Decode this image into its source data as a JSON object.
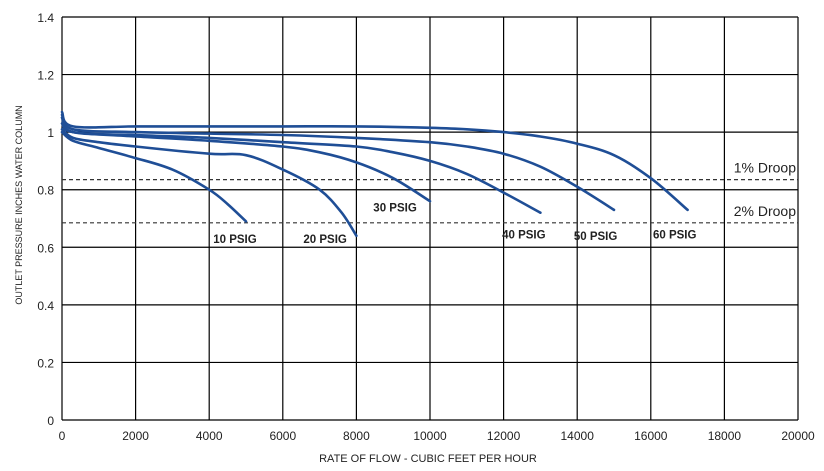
{
  "chart_data": {
    "type": "line",
    "xlabel": "RATE OF FLOW - CUBIC FEET PER HOUR",
    "ylabel": "OUTLET PRESSURE INCHES WATER COLUMN",
    "xlim": [
      0,
      20000
    ],
    "ylim": [
      0,
      1.4
    ],
    "x_ticks": [
      0,
      2000,
      4000,
      6000,
      8000,
      10000,
      12000,
      14000,
      16000,
      18000,
      20000
    ],
    "y_ticks": [
      0,
      0.2,
      0.4,
      0.6,
      0.8,
      1,
      1.2,
      1.4
    ],
    "grid": true,
    "series": [
      {
        "name": "10 PSIG",
        "x": [
          0,
          300,
          1000,
          2000,
          3000,
          4000,
          4500,
          5000
        ],
        "y": [
          1.0,
          0.97,
          0.945,
          0.91,
          0.87,
          0.8,
          0.75,
          0.69
        ]
      },
      {
        "name": "20 PSIG",
        "x": [
          0,
          300,
          1000,
          2000,
          4000,
          5000,
          6000,
          7000,
          7600,
          8000
        ],
        "y": [
          1.01,
          0.98,
          0.965,
          0.95,
          0.925,
          0.92,
          0.87,
          0.8,
          0.72,
          0.64
        ]
      },
      {
        "name": "30 PSIG",
        "x": [
          0,
          300,
          2000,
          4000,
          6000,
          7000,
          8000,
          9000,
          10000
        ],
        "y": [
          1.03,
          1.0,
          0.985,
          0.97,
          0.95,
          0.93,
          0.895,
          0.84,
          0.76
        ]
      },
      {
        "name": "40 PSIG",
        "x": [
          0,
          300,
          2000,
          4000,
          6000,
          8000,
          9000,
          10000,
          11000,
          12000,
          13000
        ],
        "y": [
          1.05,
          1.0,
          0.99,
          0.98,
          0.965,
          0.95,
          0.93,
          0.9,
          0.855,
          0.79,
          0.72
        ]
      },
      {
        "name": "50 PSIG",
        "x": [
          0,
          300,
          2000,
          4000,
          6000,
          8000,
          10000,
          11000,
          12000,
          13000,
          14000,
          15000
        ],
        "y": [
          1.06,
          1.01,
          1.0,
          0.995,
          0.99,
          0.98,
          0.965,
          0.95,
          0.925,
          0.88,
          0.81,
          0.73
        ]
      },
      {
        "name": "60 PSIG",
        "x": [
          0,
          300,
          2000,
          4000,
          6000,
          8000,
          10000,
          11000,
          12000,
          13000,
          14000,
          15000,
          16000,
          17000
        ],
        "y": [
          1.07,
          1.02,
          1.02,
          1.02,
          1.02,
          1.02,
          1.015,
          1.01,
          1.0,
          0.985,
          0.96,
          0.92,
          0.84,
          0.73
        ]
      }
    ],
    "series_labels": [
      {
        "text": "10 PSIG",
        "x": 4700,
        "y": 0.615
      },
      {
        "text": "20 PSIG",
        "x": 7150,
        "y": 0.615
      },
      {
        "text": "30 PSIG",
        "x": 9050,
        "y": 0.725
      },
      {
        "text": "40 PSIG",
        "x": 12550,
        "y": 0.63
      },
      {
        "text": "50 PSIG",
        "x": 14500,
        "y": 0.625
      },
      {
        "text": "60 PSIG",
        "x": 16650,
        "y": 0.63
      }
    ],
    "reference_lines": [
      {
        "label": "1% Droop",
        "y": 0.835
      },
      {
        "label": "2% Droop",
        "y": 0.685
      }
    ],
    "colors": {
      "series": "#1f4e96",
      "grid": "#000000",
      "reference": "#333333"
    }
  }
}
